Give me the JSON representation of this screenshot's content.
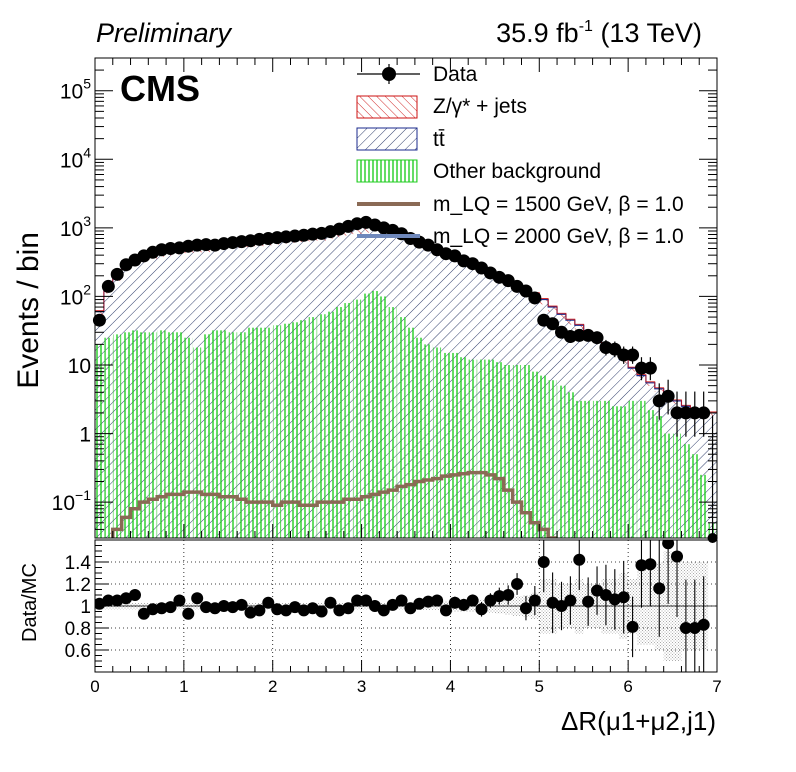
{
  "header": {
    "left": "Preliminary",
    "lumi_value": "35.9 fb",
    "lumi_exp": "-1",
    "energy": " (13 TeV)"
  },
  "badge": "CMS",
  "colors": {
    "zjets": "#cc1111",
    "ttbar": "#1a2a8c",
    "other": "#22cc22",
    "lq1500": "#8a6a55",
    "lq2000": "#6f88bb",
    "data": "#000000"
  },
  "chart_data": [
    {
      "type": "histogram",
      "ylabel": "Events / bin",
      "log_y": true,
      "ylim": [
        0.03,
        300000
      ],
      "xlim": [
        0,
        7
      ],
      "yticks": [
        {
          "v": 0.1,
          "base": "10",
          "exp": "−1"
        },
        {
          "v": 1,
          "base": "1",
          "exp": ""
        },
        {
          "v": 10,
          "base": "10",
          "exp": ""
        },
        {
          "v": 100,
          "base": "10",
          "exp": "2"
        },
        {
          "v": 1000,
          "base": "10",
          "exp": "3"
        },
        {
          "v": 10000,
          "base": "10",
          "exp": "4"
        },
        {
          "v": 100000,
          "base": "10",
          "exp": "5"
        }
      ],
      "legend": {
        "data": "Data",
        "zjets": "Z/γ* + jets",
        "ttbar": "tt̄",
        "other": "Other background",
        "lq1500": "m_LQ = 1500 GeV, β = 1.0",
        "lq2000": "m_LQ = 2000 GeV, β = 1.0"
      },
      "bins": {
        "x0": 0.0,
        "width": 0.1,
        "total_bg": [
          60,
          130,
          200,
          300,
          350,
          380,
          420,
          460,
          480,
          500,
          520,
          530,
          540,
          560,
          580,
          600,
          620,
          640,
          660,
          680,
          700,
          720,
          740,
          760,
          780,
          800,
          850,
          900,
          950,
          1000,
          1050,
          1100,
          1050,
          950,
          850,
          760,
          680,
          600,
          520,
          450,
          400,
          350,
          310,
          270,
          230,
          200,
          170,
          150,
          130,
          110,
          90,
          70,
          55,
          45,
          38,
          30,
          25,
          20,
          16,
          12,
          9,
          7,
          5.5,
          4.5,
          3.5,
          3,
          2.5,
          2.2,
          2,
          2
        ],
        "other": [
          20,
          25,
          28,
          30,
          32,
          30,
          30,
          32,
          30,
          30,
          25,
          18,
          28,
          32,
          32,
          30,
          30,
          35,
          35,
          35,
          38,
          40,
          42,
          45,
          50,
          55,
          60,
          70,
          80,
          90,
          110,
          120,
          100,
          70,
          50,
          35,
          25,
          20,
          18,
          15,
          15,
          13,
          12,
          12,
          12,
          11,
          10,
          10,
          10,
          8,
          7,
          6,
          5,
          4,
          3,
          3,
          3,
          3,
          2.5,
          2.5,
          3,
          3,
          2.2,
          1.8,
          1,
          1,
          0.7,
          0.5,
          0.25,
          0.05
        ]
      },
      "data_points": {
        "x": [
          0.05,
          0.15,
          0.25,
          0.35,
          0.45,
          0.55,
          0.65,
          0.75,
          0.85,
          0.95,
          1.05,
          1.15,
          1.25,
          1.35,
          1.45,
          1.55,
          1.65,
          1.75,
          1.85,
          1.95,
          2.05,
          2.15,
          2.25,
          2.35,
          2.45,
          2.55,
          2.65,
          2.75,
          2.85,
          2.95,
          3.05,
          3.15,
          3.25,
          3.35,
          3.45,
          3.55,
          3.65,
          3.75,
          3.85,
          3.95,
          4.05,
          4.15,
          4.25,
          4.35,
          4.45,
          4.55,
          4.65,
          4.75,
          4.85,
          4.95,
          5.05,
          5.15,
          5.25,
          5.35,
          5.45,
          5.55,
          5.65,
          5.75,
          5.85,
          5.95,
          6.05,
          6.15,
          6.25,
          6.35,
          6.45,
          6.55,
          6.65,
          6.75,
          6.85,
          6.95
        ],
        "y": [
          45,
          140,
          210,
          290,
          340,
          390,
          440,
          480,
          500,
          510,
          540,
          560,
          570,
          560,
          590,
          610,
          630,
          650,
          680,
          700,
          720,
          740,
          760,
          780,
          810,
          830,
          880,
          960,
          1050,
          1150,
          1200,
          1100,
          1000,
          920,
          820,
          700,
          620,
          560,
          480,
          420,
          390,
          330,
          300,
          260,
          220,
          190,
          170,
          140,
          120,
          95,
          45,
          40,
          30,
          26,
          27,
          27,
          25,
          18,
          17,
          14,
          14,
          9,
          9,
          3,
          3.5,
          2,
          2,
          2,
          2,
          0.03
        ],
        "yerr_low": [
          6,
          11,
          14,
          17,
          18,
          20,
          21,
          22,
          22,
          23,
          23,
          24,
          24,
          24,
          24,
          25,
          25,
          26,
          26,
          26,
          27,
          27,
          28,
          28,
          28,
          29,
          30,
          31,
          32,
          34,
          35,
          33,
          32,
          30,
          29,
          26,
          25,
          24,
          22,
          20,
          20,
          18,
          17,
          16,
          15,
          14,
          13,
          12,
          11,
          10,
          7,
          6,
          5.5,
          5,
          5,
          5,
          5,
          4.2,
          4,
          3.6,
          3.6,
          3,
          3,
          1.4,
          1.6,
          1.1,
          1.1,
          1.1,
          1.1,
          0
        ],
        "yerr_high": [
          7,
          12,
          15,
          18,
          19,
          21,
          22,
          23,
          23,
          24,
          24,
          25,
          25,
          25,
          25,
          26,
          26,
          27,
          27,
          27,
          28,
          28,
          29,
          29,
          29,
          30,
          31,
          32,
          33,
          35,
          36,
          34,
          33,
          31,
          30,
          27,
          26,
          25,
          23,
          21,
          21,
          19,
          18,
          17,
          16,
          15,
          14,
          13,
          12,
          11,
          8,
          7,
          6.5,
          6,
          6,
          6,
          6,
          5.2,
          5,
          4.6,
          4.6,
          4,
          4,
          2.4,
          2.6,
          2.1,
          2.1,
          2.1,
          2.1,
          1.8
        ]
      },
      "signal_lq1500": [
        0.04,
        0.06,
        0.08,
        0.1,
        0.11,
        0.12,
        0.13,
        0.13,
        0.14,
        0.14,
        0.13,
        0.13,
        0.12,
        0.12,
        0.11,
        0.1,
        0.1,
        0.1,
        0.09,
        0.1,
        0.1,
        0.09,
        0.09,
        0.1,
        0.1,
        0.1,
        0.11,
        0.11,
        0.12,
        0.13,
        0.14,
        0.15,
        0.17,
        0.18,
        0.2,
        0.21,
        0.22,
        0.24,
        0.25,
        0.26,
        0.27,
        0.27,
        0.25,
        0.22,
        0.15,
        0.1,
        0.07,
        0.05,
        0.04,
        0.03
      ],
      "signal_lq1500_x0": 0.2
    },
    {
      "type": "scatter",
      "ylabel": "Data/MC",
      "xlabel": "ΔR(μ1+μ2,j1)",
      "ylim": [
        0.4,
        1.6
      ],
      "xlim": [
        0,
        7
      ],
      "yticks": [
        0.6,
        0.8,
        1,
        1.2,
        1.4
      ],
      "xticks": [
        0,
        1,
        2,
        3,
        4,
        5,
        6,
        7
      ],
      "ratio": {
        "x": [
          0.05,
          0.15,
          0.25,
          0.35,
          0.45,
          0.55,
          0.65,
          0.75,
          0.85,
          0.95,
          1.05,
          1.15,
          1.25,
          1.35,
          1.45,
          1.55,
          1.65,
          1.75,
          1.85,
          1.95,
          2.05,
          2.15,
          2.25,
          2.35,
          2.45,
          2.55,
          2.65,
          2.75,
          2.85,
          2.95,
          3.05,
          3.15,
          3.25,
          3.35,
          3.45,
          3.55,
          3.65,
          3.75,
          3.85,
          3.95,
          4.05,
          4.15,
          4.25,
          4.35,
          4.45,
          4.55,
          4.65,
          4.75,
          4.85,
          4.95,
          5.05,
          5.15,
          5.25,
          5.35,
          5.45,
          5.55,
          5.65,
          5.75,
          5.85,
          5.95,
          6.05,
          6.15,
          6.25,
          6.35,
          6.45,
          6.55,
          6.65,
          6.75,
          6.85
        ],
        "y": [
          1.02,
          1.05,
          1.05,
          1.07,
          1.1,
          0.93,
          0.97,
          0.98,
          0.99,
          1.05,
          0.93,
          1.07,
          0.99,
          0.98,
          1,
          0.99,
          1.01,
          0.94,
          0.96,
          1.03,
          0.97,
          0.96,
          0.99,
          0.96,
          0.98,
          0.95,
          1.03,
          0.96,
          0.98,
          1.05,
          1.05,
          1.0,
          0.96,
          1.01,
          1.05,
          0.98,
          1.02,
          1.04,
          1.05,
          0.96,
          1.03,
          1.01,
          1.05,
          0.97,
          1.05,
          1.09,
          1.1,
          1.2,
          0.98,
          1.05,
          1.4,
          1.03,
          1.0,
          1.05,
          1.42,
          1.04,
          1.14,
          1.1,
          1.06,
          1.08,
          0.81,
          1.37,
          1.38,
          1.16,
          1.57,
          1.45,
          0.8,
          0.8,
          0.83
        ],
        "err": [
          0.03,
          0.03,
          0.03,
          0.03,
          0.03,
          0.03,
          0.03,
          0.03,
          0.03,
          0.03,
          0.03,
          0.03,
          0.03,
          0.03,
          0.03,
          0.03,
          0.03,
          0.03,
          0.03,
          0.03,
          0.03,
          0.03,
          0.03,
          0.03,
          0.03,
          0.03,
          0.03,
          0.03,
          0.03,
          0.03,
          0.03,
          0.03,
          0.03,
          0.03,
          0.03,
          0.03,
          0.04,
          0.04,
          0.04,
          0.04,
          0.05,
          0.05,
          0.05,
          0.06,
          0.06,
          0.07,
          0.08,
          0.09,
          0.1,
          0.12,
          0.25,
          0.25,
          0.2,
          0.2,
          0.25,
          0.2,
          0.2,
          0.25,
          0.25,
          0.3,
          0.25,
          0.35,
          0.35,
          0.4,
          0.5,
          0.5,
          0.4,
          0.4,
          0.4
        ]
      }
    }
  ]
}
